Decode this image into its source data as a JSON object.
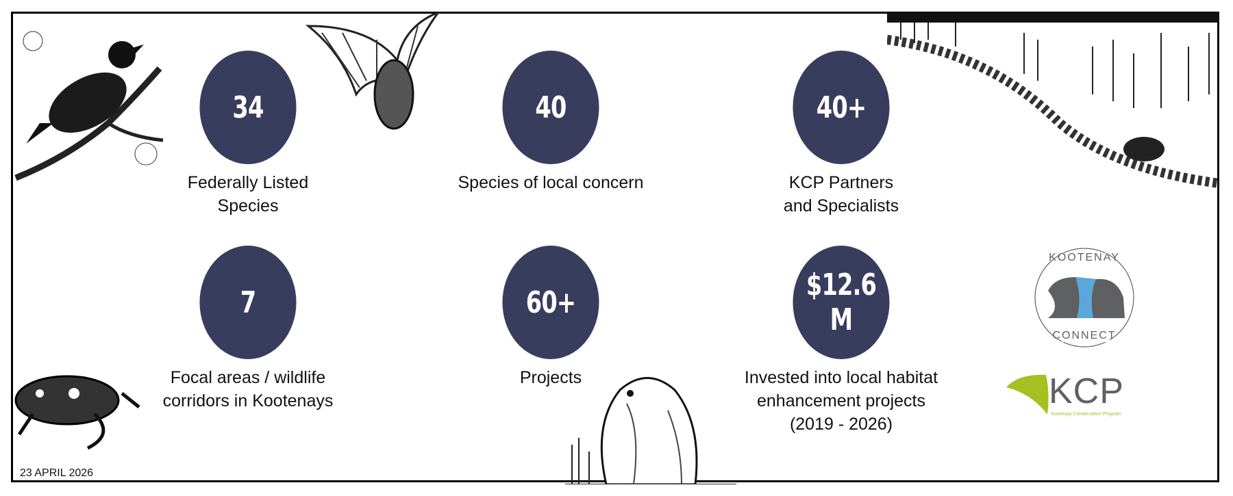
{
  "colors": {
    "circle": "#383d5e",
    "border": "#000000",
    "kc_blue": "#5aa7dc",
    "kc_grey": "#5f6062",
    "kcp_green": "#a4c021"
  },
  "stats": [
    {
      "value": "34",
      "label": "Federally Listed Species"
    },
    {
      "value": "40",
      "label": "Species of local concern"
    },
    {
      "value": "40+",
      "label": "KCP Partners and Specialists"
    },
    {
      "value": "7",
      "label": "Focal areas / wildlife corridors in Kootenays"
    },
    {
      "value": "60+",
      "label": "Projects"
    },
    {
      "value": "$12.6 M",
      "label": "Invested into local habitat enhancement projects (2019 - 2026)"
    }
  ],
  "date": "23 APRIL 2026",
  "logos": {
    "kootenay_connect": {
      "top": "KOOTENAY",
      "bottom": "CONNECT"
    },
    "kcp": {
      "mark": "KCP",
      "sub": "Kootenay Conservation Program"
    }
  },
  "illustrations": [
    "bird-illustration",
    "bat-illustration",
    "river-illustration",
    "frog-illustration",
    "beaver-illustration"
  ]
}
